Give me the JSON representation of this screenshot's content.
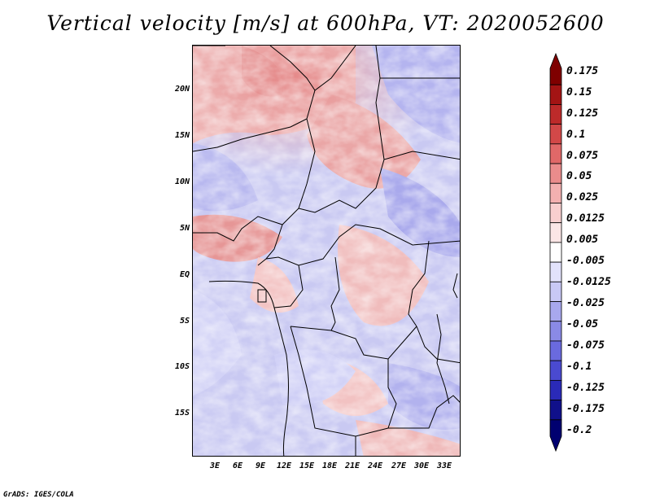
{
  "title": "Vertical velocity [m/s] at 600hPa, VT: 2020052600",
  "credit": "GrADS: IGES/COLA",
  "lat_labels": [
    "20N",
    "15N",
    "10N",
    "5N",
    "EQ",
    "5S",
    "10S",
    "15S"
  ],
  "lon_labels": [
    "3E",
    "6E",
    "9E",
    "12E",
    "15E",
    "18E",
    "21E",
    "24E",
    "27E",
    "30E",
    "33E"
  ],
  "colorbar": {
    "labels": [
      "0.175",
      "0.15",
      "0.125",
      "0.1",
      "0.075",
      "0.05",
      "0.025",
      "0.0125",
      "0.005",
      "-0.005",
      "-0.0125",
      "-0.025",
      "-0.05",
      "-0.075",
      "-0.1",
      "-0.125",
      "-0.175",
      "-0.2"
    ],
    "colors": [
      "#7f0000",
      "#a31414",
      "#bd2a2a",
      "#d24848",
      "#e06868",
      "#ea8c8c",
      "#f3b0b0",
      "#f8cfcf",
      "#fbe6e6",
      "#ffffff",
      "#e2e2fb",
      "#c8c8f5",
      "#a8a8ee",
      "#8a8ae6",
      "#6a6ade",
      "#4a4ad0",
      "#2a2ab8",
      "#10108a",
      "#000070"
    ]
  },
  "chart_data": {
    "type": "heatmap",
    "title": "Vertical velocity [m/s] at 600hPa, VT: 2020052600",
    "variable": "Vertical velocity",
    "units": "m/s",
    "level": "600hPa",
    "valid_time": "2020052600",
    "x_ticks": [
      "3E",
      "6E",
      "9E",
      "12E",
      "15E",
      "18E",
      "21E",
      "24E",
      "27E",
      "30E",
      "33E"
    ],
    "y_ticks": [
      "20N",
      "15N",
      "10N",
      "5N",
      "EQ",
      "5S",
      "10S",
      "15S"
    ],
    "lon_range": [
      0,
      35
    ],
    "lat_range": [
      -20,
      25
    ],
    "levels": [
      -0.2,
      -0.175,
      -0.125,
      -0.1,
      -0.075,
      -0.05,
      -0.025,
      -0.0125,
      -0.005,
      0.005,
      0.0125,
      0.025,
      0.05,
      0.075,
      0.1,
      0.125,
      0.15,
      0.175
    ]
  }
}
